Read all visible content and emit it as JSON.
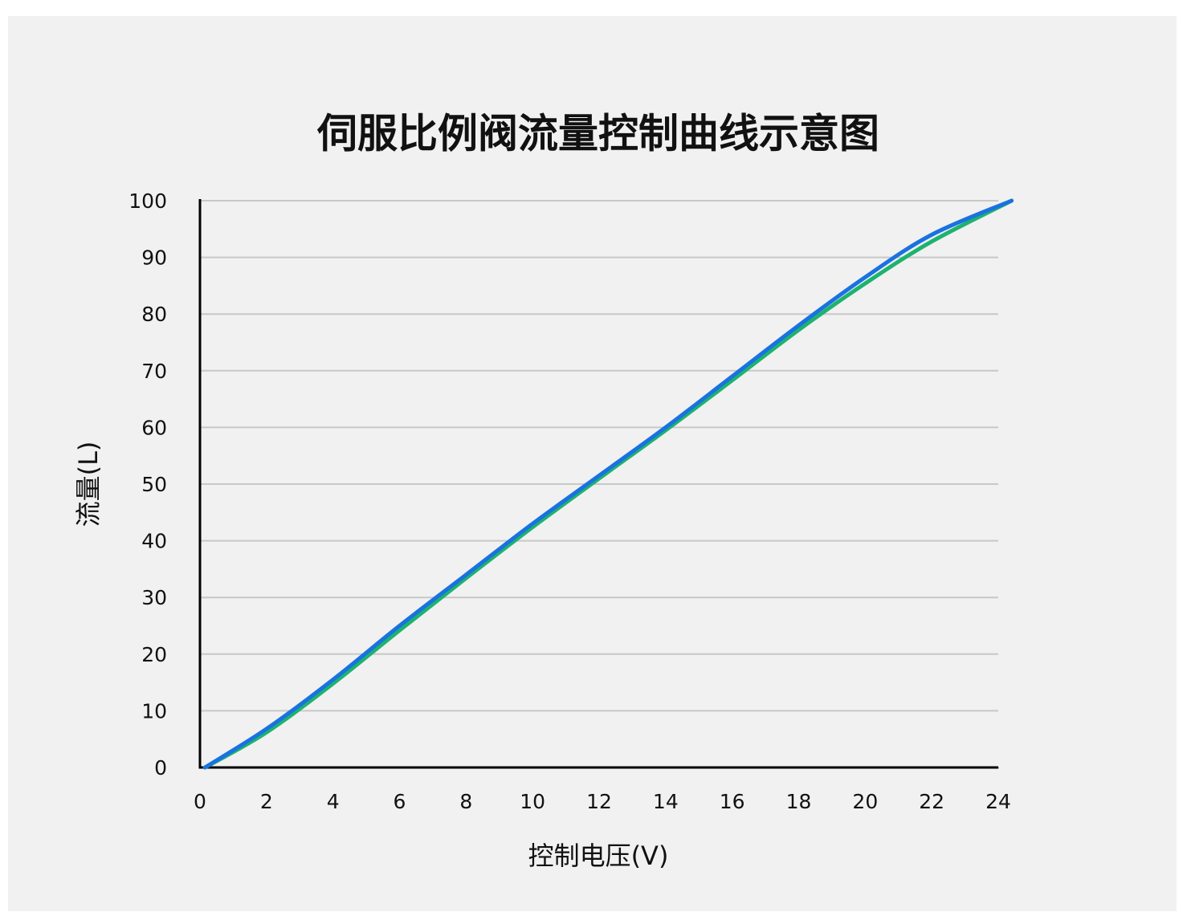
{
  "chart_data": {
    "type": "line",
    "title": "伺服比例阀流量控制曲线示意图",
    "x_label": "控制电压(V)",
    "y_label": "流量(L)",
    "x": [
      0.15,
      2,
      4,
      6,
      8,
      10,
      12,
      14,
      16,
      18,
      20,
      22,
      24.4
    ],
    "series": [
      {
        "color": "#1db36f",
        "values": [
          0,
          6.2,
          14.8,
          24.2,
          33.4,
          42.4,
          51,
          59.5,
          68.3,
          77.2,
          85.4,
          92.8,
          100
        ]
      },
      {
        "color": "#1a72e0",
        "values": [
          0,
          6.8,
          15.5,
          25,
          34,
          43,
          51.5,
          60,
          69,
          78,
          86.5,
          94,
          100
        ]
      }
    ],
    "xlim": [
      0,
      24
    ],
    "xticks": [
      0,
      2,
      4,
      6,
      8,
      10,
      12,
      14,
      16,
      18,
      20,
      22,
      24
    ],
    "ylim": [
      0,
      100
    ],
    "yticks": [
      0,
      10,
      20,
      30,
      40,
      50,
      60,
      70,
      80,
      90,
      100
    ],
    "grid": true
  }
}
